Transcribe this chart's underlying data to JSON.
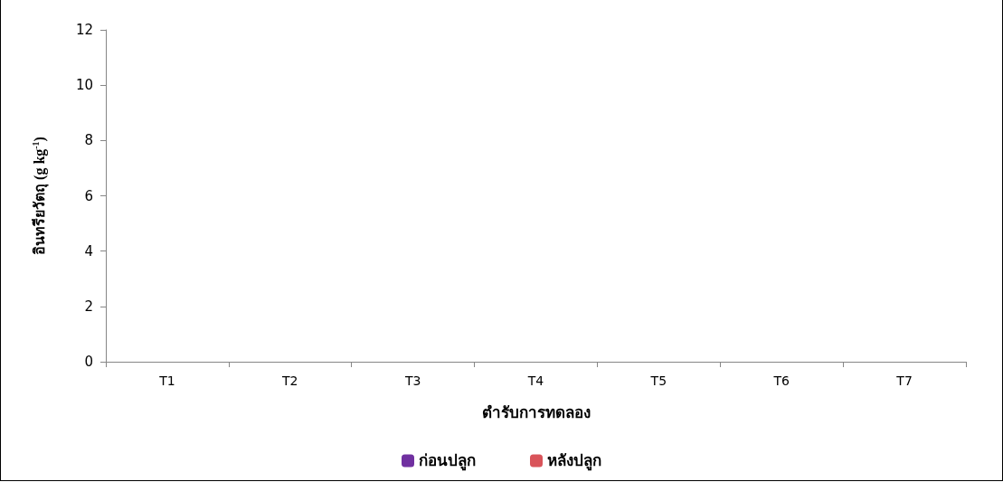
{
  "chart_data": {
    "type": "bar",
    "xlabel": "ตำรับการทดลอง",
    "ylabel": "อินทรียวัตถุ (g kg$^{-1}$)",
    "categories": [
      "T1",
      "T2",
      "T3",
      "T4",
      "T5",
      "T6",
      "T7"
    ],
    "series": [
      {
        "name": "ก่อนปลูก",
        "color": "#7030a0",
        "values": [
          null,
          null,
          null,
          null,
          null,
          null,
          null
        ]
      },
      {
        "name": "หลังปลูก",
        "color": "#d9545a",
        "values": [
          null,
          null,
          null,
          null,
          null,
          null,
          null
        ]
      }
    ],
    "ylim": [
      0,
      12
    ],
    "yticks": [
      0,
      2,
      4,
      6,
      8,
      10,
      12
    ],
    "grid": false,
    "legend": "bottom"
  }
}
